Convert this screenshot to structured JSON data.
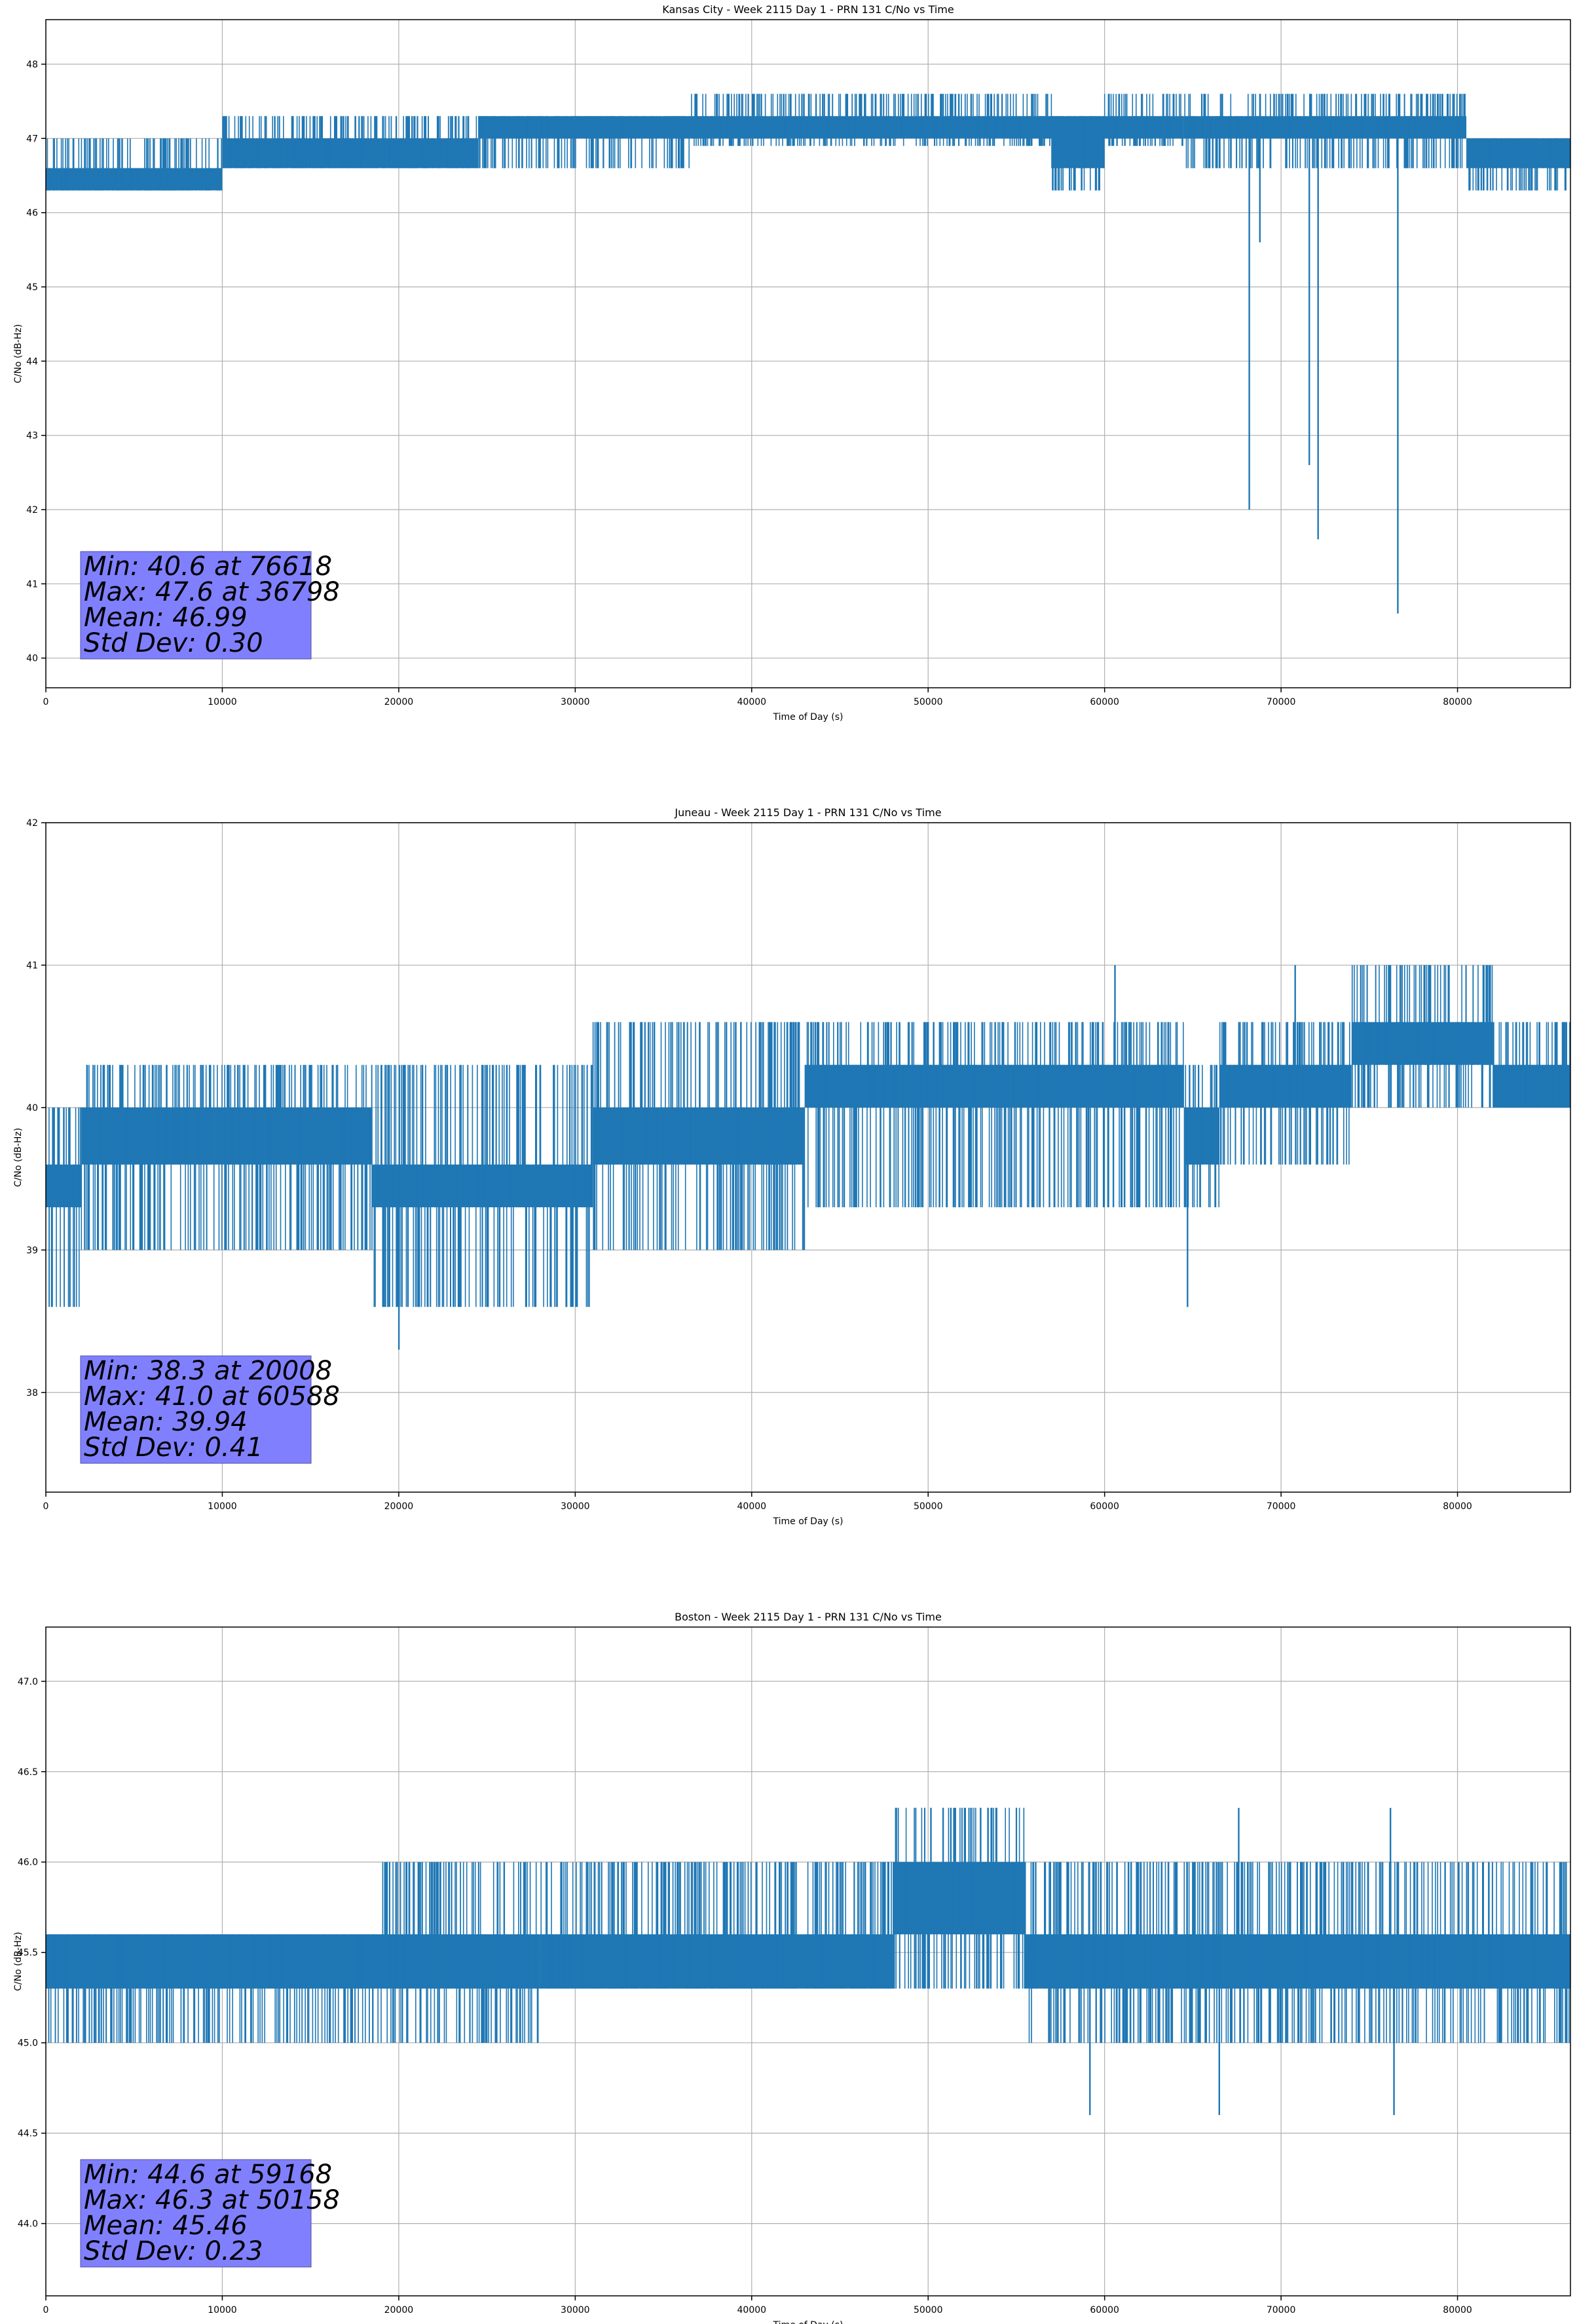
{
  "chart_data": [
    {
      "type": "line",
      "title": "Kansas City - Week 2115 Day 1 - PRN 131 C/No vs Time",
      "xlabel": "Time of Day (s)",
      "ylabel": "C/No (dB-Hz)",
      "xlim": [
        0,
        86400
      ],
      "ylim": [
        39.6,
        48.6
      ],
      "xticks": [
        0,
        10000,
        20000,
        30000,
        40000,
        50000,
        60000,
        70000,
        80000
      ],
      "yticks": [
        40,
        41,
        42,
        43,
        44,
        45,
        46,
        47,
        48
      ],
      "ytick_labels": [
        "40",
        "41",
        "42",
        "43",
        "44",
        "45",
        "46",
        "47",
        "48"
      ],
      "grid": true,
      "color": "#1f77b4",
      "series": [
        {
          "bands": [
            {
              "x": [
                0,
                10000
              ],
              "y": [
                46.3,
                46.6
              ],
              "flicker": [
                46.3,
                47.0
              ]
            },
            {
              "x": [
                10000,
                24500
              ],
              "y": [
                46.6,
                47.0
              ],
              "flicker": [
                46.6,
                47.3
              ]
            },
            {
              "x": [
                24500,
                36500
              ],
              "y": [
                47.0,
                47.3
              ],
              "flicker": [
                46.6,
                47.3
              ]
            },
            {
              "x": [
                36500,
                57000
              ],
              "y": [
                47.0,
                47.3
              ],
              "flicker": [
                46.9,
                47.6
              ]
            },
            {
              "x": [
                57000,
                60000
              ],
              "y": [
                46.6,
                47.3
              ],
              "flicker": [
                46.3,
                47.3
              ]
            },
            {
              "x": [
                60000,
                64500
              ],
              "y": [
                47.0,
                47.3
              ],
              "flicker": [
                46.9,
                47.6
              ]
            },
            {
              "x": [
                64500,
                80500
              ],
              "y": [
                47.0,
                47.3
              ],
              "flicker": [
                46.6,
                47.6
              ]
            },
            {
              "x": [
                80500,
                86400
              ],
              "y": [
                46.6,
                47.0
              ],
              "flicker": [
                46.3,
                47.0
              ]
            }
          ],
          "spikes": [
            {
              "x": 68200,
              "y": 42.0
            },
            {
              "x": 68800,
              "y": 45.6
            },
            {
              "x": 71600,
              "y": 42.6
            },
            {
              "x": 72100,
              "y": 41.6
            },
            {
              "x": 76618,
              "y": 40.6
            },
            {
              "x": 36798,
              "y": 47.6
            },
            {
              "x": 57200,
              "y": 46.3
            }
          ]
        }
      ],
      "annotation": [
        "Min: 40.6 at 76618",
        "Max: 47.6 at 36798",
        "Mean: 46.99",
        "Std Dev: 0.30"
      ]
    },
    {
      "type": "line",
      "title": "Juneau - Week 2115 Day 1 - PRN 131 C/No vs Time",
      "xlabel": "Time of Day (s)",
      "ylabel": "C/No (dB-Hz)",
      "xlim": [
        0,
        86400
      ],
      "ylim": [
        37.3,
        42.0
      ],
      "xticks": [
        0,
        10000,
        20000,
        30000,
        40000,
        50000,
        60000,
        70000,
        80000
      ],
      "yticks": [
        38,
        39,
        40,
        41,
        42
      ],
      "ytick_labels": [
        "38",
        "39",
        "40",
        "41",
        "42"
      ],
      "grid": true,
      "color": "#1f77b4",
      "series": [
        {
          "bands": [
            {
              "x": [
                0,
                2000
              ],
              "y": [
                39.3,
                39.6
              ],
              "flicker": [
                38.6,
                40.0
              ]
            },
            {
              "x": [
                2000,
                9500
              ],
              "y": [
                39.6,
                40.0
              ],
              "flicker": [
                39.0,
                40.3
              ]
            },
            {
              "x": [
                9500,
                18500
              ],
              "y": [
                39.6,
                40.0
              ],
              "flicker": [
                39.0,
                40.3
              ]
            },
            {
              "x": [
                18500,
                31000
              ],
              "y": [
                39.3,
                39.6
              ],
              "flicker": [
                38.6,
                40.3
              ]
            },
            {
              "x": [
                31000,
                43000
              ],
              "y": [
                39.6,
                40.0
              ],
              "flicker": [
                39.0,
                40.6
              ]
            },
            {
              "x": [
                43000,
                64500
              ],
              "y": [
                40.0,
                40.3
              ],
              "flicker": [
                39.3,
                40.6
              ]
            },
            {
              "x": [
                64500,
                66500
              ],
              "y": [
                39.6,
                40.0
              ],
              "flicker": [
                39.3,
                40.3
              ]
            },
            {
              "x": [
                66500,
                74000
              ],
              "y": [
                40.0,
                40.3
              ],
              "flicker": [
                39.6,
                40.6
              ]
            },
            {
              "x": [
                74000,
                82000
              ],
              "y": [
                40.3,
                40.6
              ],
              "flicker": [
                40.0,
                41.0
              ]
            },
            {
              "x": [
                82000,
                86400
              ],
              "y": [
                40.0,
                40.3
              ],
              "flicker": [
                40.0,
                40.6
              ]
            }
          ],
          "spikes": [
            {
              "x": 20008,
              "y": 38.3
            },
            {
              "x": 60588,
              "y": 41.0
            },
            {
              "x": 64700,
              "y": 38.6
            },
            {
              "x": 29500,
              "y": 38.6
            },
            {
              "x": 41000,
              "y": 39.0
            },
            {
              "x": 70800,
              "y": 41.0
            }
          ]
        }
      ],
      "annotation": [
        "Min: 38.3 at 20008",
        "Max: 41.0 at 60588",
        "Mean: 39.94",
        "Std Dev: 0.41"
      ]
    },
    {
      "type": "line",
      "title": "Boston - Week 2115 Day 1 - PRN 131 C/No vs Time",
      "xlabel": "Time of Day (s)",
      "ylabel": "C/No (dB-Hz)",
      "xlim": [
        0,
        86400
      ],
      "ylim": [
        43.6,
        47.3
      ],
      "xticks": [
        0,
        10000,
        20000,
        30000,
        40000,
        50000,
        60000,
        70000,
        80000
      ],
      "yticks": [
        44.0,
        44.5,
        45.0,
        45.5,
        46.0,
        46.5,
        47.0
      ],
      "ytick_labels": [
        "44.0",
        "44.5",
        "45.0",
        "45.5",
        "46.0",
        "46.5",
        "47.0"
      ],
      "grid": true,
      "color": "#1f77b4",
      "series": [
        {
          "bands": [
            {
              "x": [
                0,
                19000
              ],
              "y": [
                45.3,
                45.6
              ],
              "flicker": [
                45.0,
                45.6
              ]
            },
            {
              "x": [
                19000,
                28000
              ],
              "y": [
                45.3,
                45.6
              ],
              "flicker": [
                45.0,
                46.0
              ]
            },
            {
              "x": [
                28000,
                48000
              ],
              "y": [
                45.3,
                45.6
              ],
              "flicker": [
                45.3,
                46.0
              ]
            },
            {
              "x": [
                48000,
                55500
              ],
              "y": [
                45.6,
                46.0
              ],
              "flicker": [
                45.3,
                46.3
              ]
            },
            {
              "x": [
                55500,
                62000
              ],
              "y": [
                45.3,
                45.6
              ],
              "flicker": [
                45.0,
                46.0
              ]
            },
            {
              "x": [
                62000,
                86400
              ],
              "y": [
                45.3,
                45.6
              ],
              "flicker": [
                45.0,
                46.0
              ]
            }
          ],
          "spikes": [
            {
              "x": 59168,
              "y": 44.6
            },
            {
              "x": 66500,
              "y": 44.6
            },
            {
              "x": 76400,
              "y": 44.6
            },
            {
              "x": 50158,
              "y": 46.3
            },
            {
              "x": 51500,
              "y": 46.3
            },
            {
              "x": 76200,
              "y": 46.3
            },
            {
              "x": 67600,
              "y": 46.3
            }
          ]
        }
      ],
      "annotation": [
        "Min: 44.6 at 59168",
        "Max: 46.3 at 50158",
        "Mean: 45.46",
        "Std Dev: 0.23"
      ]
    }
  ]
}
